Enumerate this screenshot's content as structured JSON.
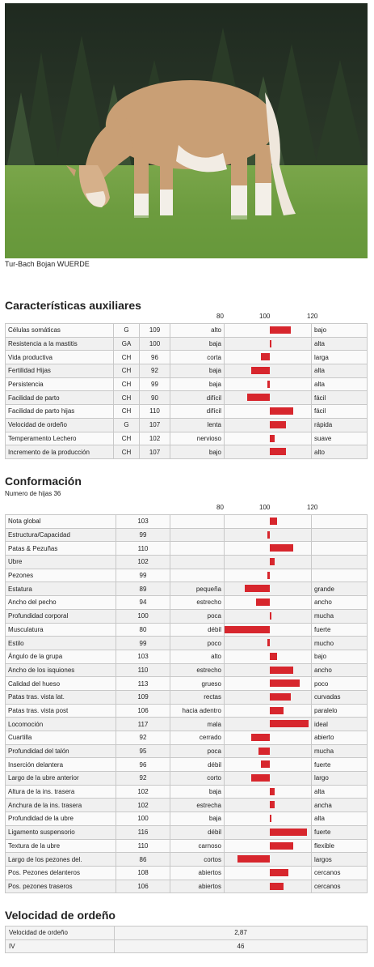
{
  "photo": {
    "caption": "Tur-Bach Bojan WUERDE"
  },
  "aux": {
    "title": "Características auxiliares",
    "scale": [
      "80",
      "100",
      "120"
    ],
    "rows": [
      {
        "name": "Células somáticas",
        "code": "G",
        "value": 109,
        "left": "alto",
        "right": "bajo"
      },
      {
        "name": "Resistencia a la mastitis",
        "code": "GA",
        "value": 100,
        "left": "baja",
        "right": "alta"
      },
      {
        "name": "Vida productiva",
        "code": "CH",
        "value": 96,
        "left": "corta",
        "right": "larga"
      },
      {
        "name": "Fertilidad Hijas",
        "code": "CH",
        "value": 92,
        "left": "baja",
        "right": "alta"
      },
      {
        "name": "Persistencia",
        "code": "CH",
        "value": 99,
        "left": "baja",
        "right": "alta"
      },
      {
        "name": "Facilidad de parto",
        "code": "CH",
        "value": 90,
        "left": "difícil",
        "right": "fácil"
      },
      {
        "name": "Facilidad de parto hijas",
        "code": "CH",
        "value": 110,
        "left": "difícil",
        "right": "fácil"
      },
      {
        "name": "Velocidad de ordeño",
        "code": "G",
        "value": 107,
        "left": "lenta",
        "right": "rápida"
      },
      {
        "name": "Temperamento Lechero",
        "code": "CH",
        "value": 102,
        "left": "nervioso",
        "right": "suave"
      },
      {
        "name": "Incremento de la producción",
        "code": "CH",
        "value": 107,
        "left": "bajo",
        "right": "alto"
      }
    ]
  },
  "conf": {
    "title": "Conformación",
    "subtitle": "Numero de hijas 36",
    "scale": [
      "80",
      "100",
      "120"
    ],
    "rows": [
      {
        "name": "Nota global",
        "value": 103,
        "left": "",
        "right": ""
      },
      {
        "name": "Estructura/Capacidad",
        "value": 99,
        "left": "",
        "right": ""
      },
      {
        "name": "Patas & Pezuñas",
        "value": 110,
        "left": "",
        "right": ""
      },
      {
        "name": "Ubre",
        "value": 102,
        "left": "",
        "right": ""
      },
      {
        "name": "Pezones",
        "value": 99,
        "left": "",
        "right": ""
      },
      {
        "name": "Estatura",
        "value": 89,
        "left": "pequeña",
        "right": "grande"
      },
      {
        "name": "Ancho del pecho",
        "value": 94,
        "left": "estrecho",
        "right": "ancho"
      },
      {
        "name": "Profundidad corporal",
        "value": 100,
        "left": "poca",
        "right": "mucha"
      },
      {
        "name": "Musculatura",
        "value": 80,
        "left": "débil",
        "right": "fuerte"
      },
      {
        "name": "Estilo",
        "value": 99,
        "left": "poco",
        "right": "mucho"
      },
      {
        "name": "Ángulo de la grupa",
        "value": 103,
        "left": "alto",
        "right": "bajo"
      },
      {
        "name": "Ancho de los isquiones",
        "value": 110,
        "left": "estrecho",
        "right": "ancho"
      },
      {
        "name": "Calidad del hueso",
        "value": 113,
        "left": "grueso",
        "right": "poco"
      },
      {
        "name": "Patas tras. vista lat.",
        "value": 109,
        "left": "rectas",
        "right": "curvadas"
      },
      {
        "name": "Patas tras. vista post",
        "value": 106,
        "left": "hacia adentro",
        "right": "paralelo"
      },
      {
        "name": "Locomoción",
        "value": 117,
        "left": "mala",
        "right": "ideal"
      },
      {
        "name": "Cuartilla",
        "value": 92,
        "left": "cerrado",
        "right": "abierto"
      },
      {
        "name": "Profundidad del talón",
        "value": 95,
        "left": "poca",
        "right": "mucha"
      },
      {
        "name": "Inserción delantera",
        "value": 96,
        "left": "débil",
        "right": "fuerte"
      },
      {
        "name": "Largo de la ubre anterior",
        "value": 92,
        "left": "corto",
        "right": "largo"
      },
      {
        "name": "Altura de la ins. trasera",
        "value": 102,
        "left": "baja",
        "right": "alta"
      },
      {
        "name": "Anchura de la ins. trasera",
        "value": 102,
        "left": "estrecha",
        "right": "ancha"
      },
      {
        "name": "Profundidad de la ubre",
        "value": 100,
        "left": "baja",
        "right": "alta"
      },
      {
        "name": "Ligamento suspensorio",
        "value": 116,
        "left": "débil",
        "right": "fuerte"
      },
      {
        "name": "Textura de la ubre",
        "value": 110,
        "left": "carnoso",
        "right": "flexible"
      },
      {
        "name": "Largo de los pezones del.",
        "value": 86,
        "left": "cortos",
        "right": "largos"
      },
      {
        "name": "Pos. Pezones delanteros",
        "value": 108,
        "left": "abiertos",
        "right": "cercanos"
      },
      {
        "name": "Pos. pezones traseros",
        "value": 106,
        "left": "abiertos",
        "right": "cercanos"
      }
    ]
  },
  "vel": {
    "title": "Velocidad de ordeño",
    "rows": [
      {
        "name": "Velocidad de ordeño",
        "value": "2,87"
      },
      {
        "name": "IV",
        "value": "46"
      }
    ]
  },
  "colors": {
    "bar": "#d7262d"
  }
}
